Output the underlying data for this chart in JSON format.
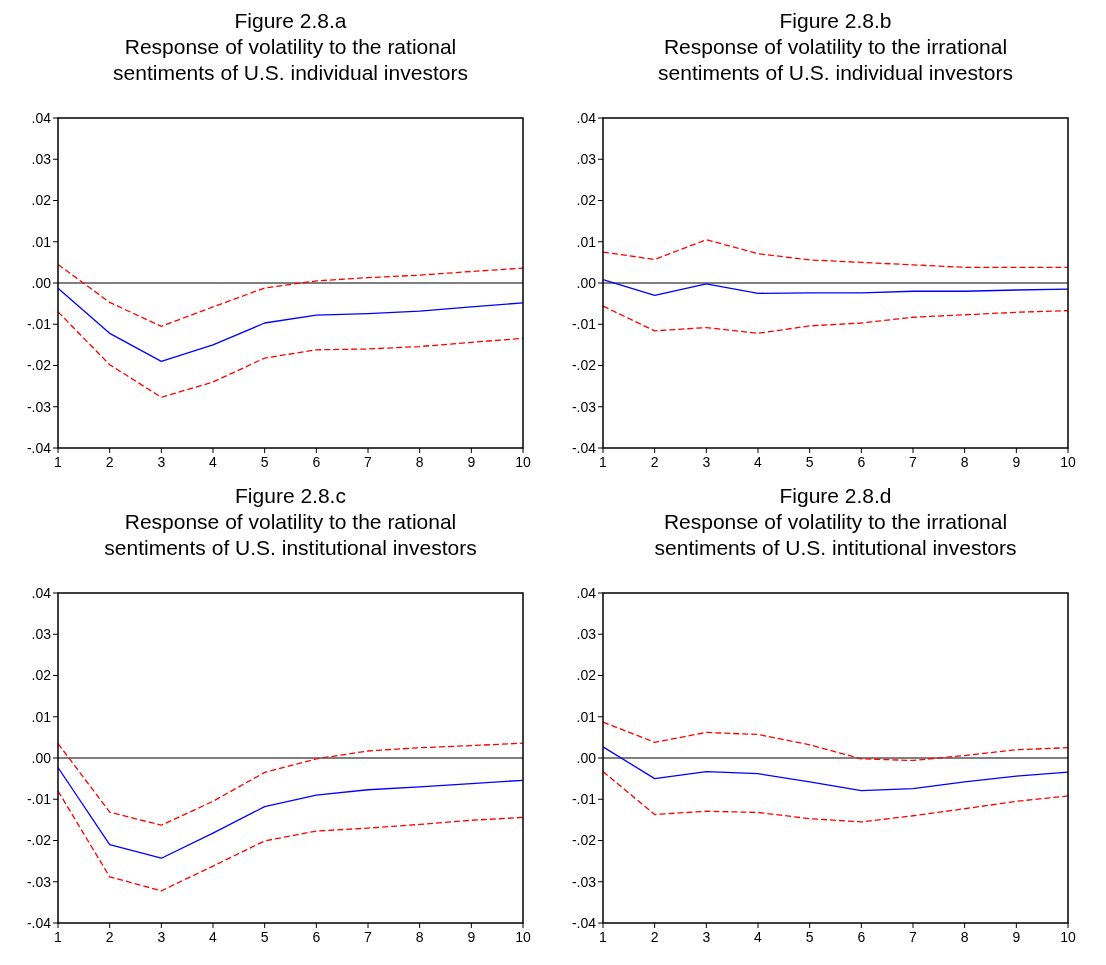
{
  "chart_data": [
    {
      "type": "line",
      "title": "Figure 2.8.a",
      "subtitle": "Response of volatility to the rational sentiments of U.S. individual investors",
      "x": [
        1,
        2,
        3,
        4,
        5,
        6,
        7,
        8,
        9,
        10
      ],
      "xlim": [
        1,
        10
      ],
      "xticks": [
        1,
        2,
        3,
        4,
        5,
        6,
        7,
        8,
        9,
        10
      ],
      "ylim": [
        -0.04,
        0.04
      ],
      "yticks": [
        {
          "value": -0.04,
          "label": "-.04"
        },
        {
          "value": -0.03,
          "label": "-.03"
        },
        {
          "value": -0.02,
          "label": "-.02"
        },
        {
          "value": -0.01,
          "label": "-.01"
        },
        {
          "value": 0,
          "label": ".00"
        },
        {
          "value": 0.01,
          "label": ".01"
        },
        {
          "value": 0.02,
          "label": ".02"
        },
        {
          "value": 0.03,
          "label": ".03"
        },
        {
          "value": 0.04,
          "label": ".04"
        }
      ],
      "grid": false,
      "ref_lines": [
        {
          "axis": "y",
          "value": 0,
          "color": "#000000"
        }
      ],
      "series": [
        {
          "color": "#0000ff",
          "line_style": "solid",
          "values": [
            -0.0013,
            -0.0122,
            -0.019,
            -0.015,
            -0.0097,
            -0.0078,
            -0.0074,
            -0.0068,
            -0.0058,
            -0.0048
          ]
        },
        {
          "color": "#ff0000",
          "line_style": "dashed",
          "values": [
            0.0045,
            -0.0047,
            -0.0105,
            -0.0058,
            -0.0012,
            0.0005,
            0.0013,
            0.0019,
            0.0028,
            0.0036
          ]
        },
        {
          "color": "#ff0000",
          "line_style": "dashed",
          "values": [
            -0.007,
            -0.0198,
            -0.0277,
            -0.024,
            -0.0182,
            -0.0162,
            -0.016,
            -0.0154,
            -0.0144,
            -0.0134
          ]
        }
      ]
    },
    {
      "type": "line",
      "title": "Figure 2.8.b",
      "subtitle": "Response of volatility to the irrational sentiments of U.S. individual investors",
      "x": [
        1,
        2,
        3,
        4,
        5,
        6,
        7,
        8,
        9,
        10
      ],
      "xlim": [
        1,
        10
      ],
      "xticks": [
        1,
        2,
        3,
        4,
        5,
        6,
        7,
        8,
        9,
        10
      ],
      "ylim": [
        -0.04,
        0.04
      ],
      "yticks": [
        {
          "value": -0.04,
          "label": "-.04"
        },
        {
          "value": -0.03,
          "label": "-.03"
        },
        {
          "value": -0.02,
          "label": "-.02"
        },
        {
          "value": -0.01,
          "label": "-.01"
        },
        {
          "value": 0,
          "label": ".00"
        },
        {
          "value": 0.01,
          "label": ".01"
        },
        {
          "value": 0.02,
          "label": ".02"
        },
        {
          "value": 0.03,
          "label": ".03"
        },
        {
          "value": 0.04,
          "label": ".04"
        }
      ],
      "grid": false,
      "ref_lines": [
        {
          "axis": "y",
          "value": 0,
          "color": "#000000"
        }
      ],
      "series": [
        {
          "color": "#0000ff",
          "line_style": "solid",
          "values": [
            0.0008,
            -0.003,
            -0.0002,
            -0.0025,
            -0.0024,
            -0.0024,
            -0.002,
            -0.002,
            -0.0017,
            -0.0015
          ]
        },
        {
          "color": "#ff0000",
          "line_style": "dashed",
          "values": [
            0.0075,
            0.0057,
            0.0105,
            0.0071,
            0.0056,
            0.005,
            0.0044,
            0.0038,
            0.0038,
            0.0038
          ]
        },
        {
          "color": "#ff0000",
          "line_style": "dashed",
          "values": [
            -0.0056,
            -0.0116,
            -0.0108,
            -0.0122,
            -0.0104,
            -0.0097,
            -0.0083,
            -0.0077,
            -0.0071,
            -0.0067
          ]
        }
      ]
    },
    {
      "type": "line",
      "title": "Figure 2.8.c",
      "subtitle": "Response of volatility to the rational sentiments of U.S. institutional investors",
      "x": [
        1,
        2,
        3,
        4,
        5,
        6,
        7,
        8,
        9,
        10
      ],
      "xlim": [
        1,
        10
      ],
      "xticks": [
        1,
        2,
        3,
        4,
        5,
        6,
        7,
        8,
        9,
        10
      ],
      "ylim": [
        -0.04,
        0.04
      ],
      "yticks": [
        {
          "value": -0.04,
          "label": "-.04"
        },
        {
          "value": -0.03,
          "label": "-.03"
        },
        {
          "value": -0.02,
          "label": "-.02"
        },
        {
          "value": -0.01,
          "label": "-.01"
        },
        {
          "value": 0,
          "label": ".00"
        },
        {
          "value": 0.01,
          "label": ".01"
        },
        {
          "value": 0.02,
          "label": ".02"
        },
        {
          "value": 0.03,
          "label": ".03"
        },
        {
          "value": 0.04,
          "label": ".04"
        }
      ],
      "grid": false,
      "ref_lines": [
        {
          "axis": "y",
          "value": 0,
          "color": "#000000"
        }
      ],
      "series": [
        {
          "color": "#0000ff",
          "line_style": "solid",
          "values": [
            -0.0023,
            -0.021,
            -0.0243,
            -0.0182,
            -0.0118,
            -0.009,
            -0.0077,
            -0.007,
            -0.0062,
            -0.0054
          ]
        },
        {
          "color": "#ff0000",
          "line_style": "dashed",
          "values": [
            0.0035,
            -0.0131,
            -0.0163,
            -0.0105,
            -0.0035,
            -0.0002,
            0.0017,
            0.0025,
            0.003,
            0.0036
          ]
        },
        {
          "color": "#ff0000",
          "line_style": "dashed",
          "values": [
            -0.008,
            -0.0288,
            -0.0322,
            -0.0262,
            -0.0201,
            -0.0177,
            -0.017,
            -0.0161,
            -0.0151,
            -0.0144
          ]
        }
      ]
    },
    {
      "type": "line",
      "title": "Figure 2.8.d",
      "subtitle": "Response of volatility to the irrational sentiments of U.S. intitutional investors",
      "x": [
        1,
        2,
        3,
        4,
        5,
        6,
        7,
        8,
        9,
        10
      ],
      "xlim": [
        1,
        10
      ],
      "xticks": [
        1,
        2,
        3,
        4,
        5,
        6,
        7,
        8,
        9,
        10
      ],
      "ylim": [
        -0.04,
        0.04
      ],
      "yticks": [
        {
          "value": -0.04,
          "label": "-.04"
        },
        {
          "value": -0.03,
          "label": "-.03"
        },
        {
          "value": -0.02,
          "label": "-.02"
        },
        {
          "value": -0.01,
          "label": "-.01"
        },
        {
          "value": 0,
          "label": ".00"
        },
        {
          "value": 0.01,
          "label": ".01"
        },
        {
          "value": 0.02,
          "label": ".02"
        },
        {
          "value": 0.03,
          "label": ".03"
        },
        {
          "value": 0.04,
          "label": ".04"
        }
      ],
      "grid": false,
      "ref_lines": [
        {
          "axis": "y",
          "value": 0,
          "color": "#000000"
        }
      ],
      "series": [
        {
          "color": "#0000ff",
          "line_style": "solid",
          "values": [
            0.0027,
            -0.005,
            -0.0033,
            -0.0038,
            -0.0058,
            -0.0079,
            -0.0074,
            -0.0058,
            -0.0044,
            -0.0034
          ]
        },
        {
          "color": "#ff0000",
          "line_style": "dashed",
          "values": [
            0.0087,
            0.0038,
            0.0062,
            0.0057,
            0.0032,
            -0.0002,
            -0.0006,
            0.0006,
            0.002,
            0.0025
          ]
        },
        {
          "color": "#ff0000",
          "line_style": "dashed",
          "values": [
            -0.0033,
            -0.0137,
            -0.0129,
            -0.0132,
            -0.0147,
            -0.0155,
            -0.014,
            -0.0123,
            -0.0105,
            -0.0092
          ]
        }
      ]
    }
  ]
}
